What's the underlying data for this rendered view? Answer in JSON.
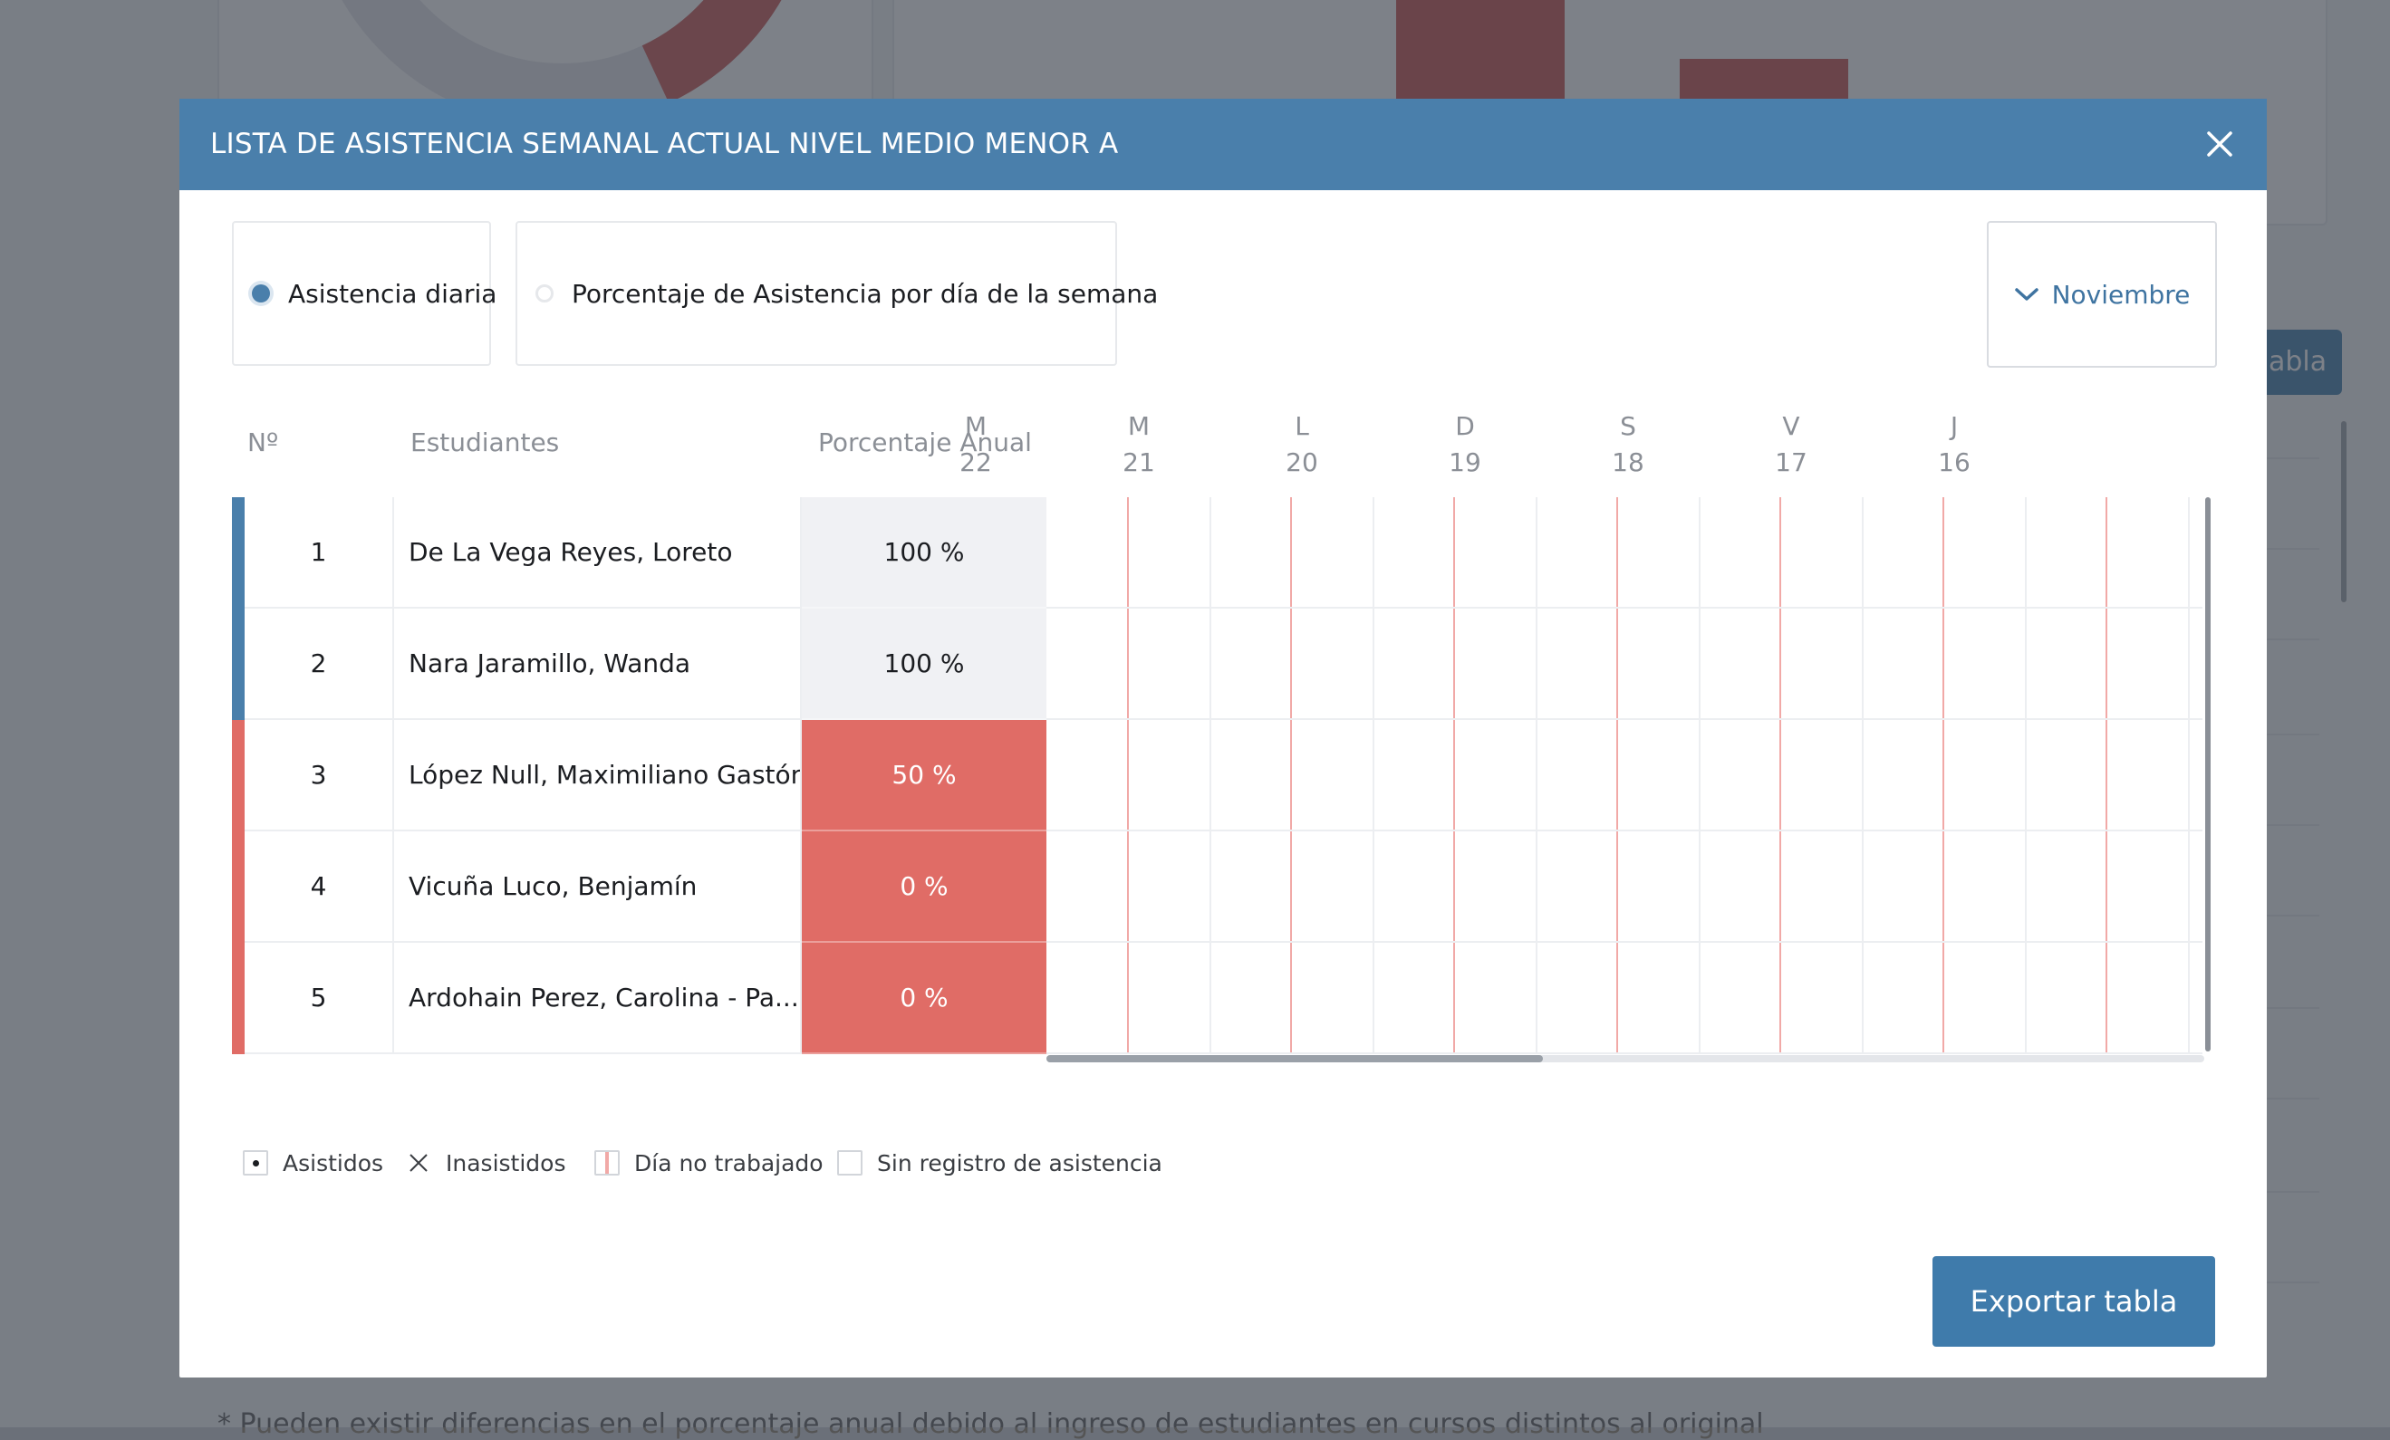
{
  "background": {
    "button_partial_label": "abla",
    "footnote_partial": "* Pueden existir diferencias en el porcentaje anual debido al ingreso de estudiantes en cursos distintos al original"
  },
  "modal": {
    "title": "LISTA DE ASISTENCIA SEMANAL ACTUAL NIVEL MEDIO MENOR A",
    "close_icon": "close-icon",
    "view_options": [
      {
        "label": "Asistencia diaria",
        "selected": true
      },
      {
        "label": "Porcentaje de Asistencia por día de la semana",
        "selected": false
      }
    ],
    "month_selector": {
      "icon": "chevron-down-icon",
      "value": "Noviembre"
    },
    "columns": {
      "number": "Nº",
      "students": "Estudiantes",
      "annual_percentage": "Porcentaje Anual"
    },
    "days": [
      {
        "weekday": "M",
        "date": "22"
      },
      {
        "weekday": "M",
        "date": "21"
      },
      {
        "weekday": "L",
        "date": "20"
      },
      {
        "weekday": "D",
        "date": "19"
      },
      {
        "weekday": "S",
        "date": "18"
      },
      {
        "weekday": "V",
        "date": "17"
      },
      {
        "weekday": "J",
        "date": "16"
      }
    ],
    "rows": [
      {
        "number": "1",
        "name": "De La Vega Reyes, Loreto",
        "percentage": "100 %",
        "status": "ok"
      },
      {
        "number": "2",
        "name": "Nara Jaramillo, Wanda",
        "percentage": "100 %",
        "status": "ok"
      },
      {
        "number": "3",
        "name": "López Null, Maximiliano Gastón",
        "percentage": "50 %",
        "status": "low"
      },
      {
        "number": "4",
        "name": "Vicuña Luco, Benjamín",
        "percentage": "0 %",
        "status": "low"
      },
      {
        "number": "5",
        "name": "Ardohain Perez, Carolina - Pa...",
        "percentage": "0 %",
        "status": "low"
      }
    ],
    "legend": [
      {
        "label": "Asistidos",
        "icon": "dot-icon"
      },
      {
        "label": "Inasistidos",
        "icon": "x-icon"
      },
      {
        "label": "Día no trabajado",
        "icon": "non-working-day-icon"
      },
      {
        "label": "Sin registro de asistencia",
        "icon": "empty-box-icon"
      }
    ],
    "export_label": "Exportar tabla"
  },
  "colors": {
    "header": "#4a7fab",
    "accent_blue": "#4a7fab",
    "ok_stripe": "#4a7fab",
    "low_stripe": "#e06c66",
    "low_cell": "#e06c66",
    "ok_cell": "#f0f1f4",
    "non_working_line": "#f1a9a7"
  }
}
